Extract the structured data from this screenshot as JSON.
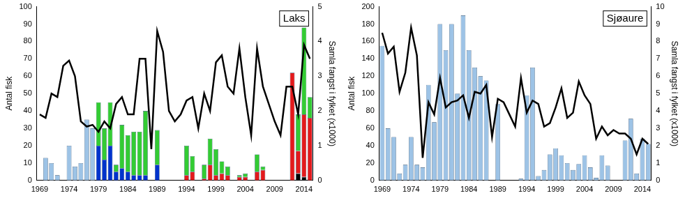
{
  "chart_data": [
    {
      "type": "bar",
      "title": "Laks",
      "ylabel": "Antal fisk",
      "y2label": "Samla fangst i fylket (x1000)",
      "stacked": true,
      "grid": false,
      "categories": [
        "1969",
        null,
        null,
        null,
        null,
        "1974",
        null,
        null,
        null,
        null,
        "1979",
        null,
        null,
        null,
        null,
        "1984",
        null,
        null,
        null,
        null,
        "1989",
        null,
        null,
        null,
        null,
        "1994",
        null,
        null,
        null,
        null,
        "1999",
        null,
        null,
        null,
        null,
        "2004",
        null,
        null,
        null,
        null,
        "2009",
        null,
        null,
        null,
        null,
        "2014",
        null
      ],
      "ylim": [
        0,
        100
      ],
      "yticks": [
        0,
        10,
        20,
        30,
        40,
        50,
        60,
        70,
        80,
        90,
        100
      ],
      "y2lim": [
        0,
        5
      ],
      "y2ticks": [
        0,
        1,
        2,
        3,
        4,
        5
      ],
      "series": [
        {
          "type": "bar",
          "color": "#9dc3e6",
          "values": [
            null,
            13,
            10,
            3,
            null,
            20,
            8,
            10,
            35,
            30,
            null,
            null,
            null,
            null,
            null,
            null,
            null,
            null,
            null,
            null,
            null,
            null,
            null,
            null,
            null,
            null,
            null,
            null,
            null,
            null,
            null,
            null,
            null,
            null,
            null,
            null,
            null,
            null,
            null,
            null,
            null,
            null,
            null,
            null,
            null,
            null,
            null
          ]
        },
        {
          "type": "bar",
          "color": "#0033cc",
          "values": [
            null,
            null,
            null,
            null,
            null,
            null,
            null,
            null,
            null,
            null,
            20,
            12,
            20,
            5,
            7,
            5,
            3,
            3,
            3,
            null,
            9,
            null,
            null,
            null,
            null,
            null,
            null,
            null,
            null,
            null,
            null,
            null,
            null,
            null,
            null,
            null,
            null,
            null,
            null,
            null,
            null,
            null,
            null,
            null,
            null,
            null,
            null
          ]
        },
        {
          "type": "bar",
          "color": "#000000",
          "values": [
            null,
            null,
            null,
            null,
            null,
            null,
            null,
            null,
            null,
            null,
            null,
            null,
            null,
            null,
            null,
            null,
            null,
            null,
            null,
            null,
            null,
            null,
            null,
            null,
            null,
            null,
            null,
            null,
            null,
            null,
            null,
            null,
            null,
            null,
            null,
            null,
            null,
            null,
            null,
            null,
            null,
            null,
            null,
            null,
            4,
            2,
            null
          ]
        },
        {
          "type": "bar",
          "color": "#e31a1c",
          "values": [
            null,
            null,
            null,
            null,
            null,
            null,
            null,
            null,
            null,
            null,
            null,
            null,
            null,
            null,
            null,
            null,
            null,
            null,
            null,
            null,
            null,
            null,
            null,
            null,
            null,
            3,
            5,
            null,
            1,
            9,
            3,
            4,
            3,
            null,
            2,
            2,
            null,
            5,
            6,
            null,
            null,
            null,
            null,
            62,
            13,
            36,
            36
          ]
        },
        {
          "type": "bar",
          "color": "#33cc33",
          "values": [
            null,
            null,
            null,
            null,
            null,
            null,
            null,
            null,
            null,
            null,
            25,
            18,
            25,
            4,
            25,
            21,
            25,
            25,
            37,
            null,
            20,
            null,
            null,
            null,
            null,
            17,
            9,
            null,
            8,
            15,
            15,
            7,
            5,
            null,
            1,
            2,
            null,
            10,
            2,
            null,
            null,
            null,
            null,
            null,
            21,
            50,
            12
          ]
        },
        {
          "type": "line",
          "axis": "y2",
          "color": "#000000",
          "marker": "none",
          "line_style": "solid",
          "values": [
            1.9,
            1.8,
            2.5,
            2.4,
            3.3,
            3.45,
            3.0,
            1.7,
            1.55,
            1.6,
            1.4,
            1.7,
            1.5,
            2.2,
            2.4,
            1.9,
            1.9,
            3.5,
            3.5,
            0.9,
            4.3,
            3.7,
            2.0,
            1.7,
            1.9,
            2.3,
            2.4,
            1.5,
            2.5,
            2.0,
            3.4,
            3.6,
            2.7,
            2.5,
            3.8,
            2.4,
            1.3,
            3.8,
            2.7,
            2.2,
            1.7,
            1.3,
            2.7,
            2.7,
            1.9,
            3.9,
            3.5
          ]
        }
      ]
    },
    {
      "type": "bar",
      "title": "Sjøaure",
      "ylabel": "Antal fisk",
      "y2label": "Samla fangst i fylket (x1000)",
      "stacked": true,
      "grid": false,
      "categories": [
        "1969",
        null,
        null,
        null,
        null,
        "1974",
        null,
        null,
        null,
        null,
        "1979",
        null,
        null,
        null,
        null,
        "1984",
        null,
        null,
        null,
        null,
        "1989",
        null,
        null,
        null,
        null,
        "1994",
        null,
        null,
        null,
        null,
        "1999",
        null,
        null,
        null,
        null,
        "2004",
        null,
        null,
        null,
        null,
        "2009",
        null,
        null,
        null,
        null,
        "2014",
        null
      ],
      "ylim": [
        0,
        200
      ],
      "yticks": [
        0,
        20,
        40,
        60,
        80,
        100,
        120,
        140,
        160,
        180,
        200
      ],
      "y2lim": [
        0,
        10
      ],
      "y2ticks": [
        0,
        1,
        2,
        3,
        4,
        5,
        6,
        7,
        8,
        9,
        10
      ],
      "series": [
        {
          "type": "bar",
          "color": "#9dc3e6",
          "values": [
            155,
            60,
            50,
            8,
            18,
            50,
            18,
            15,
            110,
            67,
            180,
            150,
            180,
            100,
            190,
            150,
            130,
            120,
            115,
            null,
            88,
            null,
            null,
            null,
            2,
            98,
            130,
            5,
            12,
            30,
            37,
            29,
            20,
            12,
            19,
            29,
            15,
            3,
            29,
            17,
            null,
            null,
            46,
            71,
            8,
            48,
            42
          ]
        },
        {
          "type": "line",
          "axis": "y2",
          "color": "#000000",
          "marker": "none",
          "line_style": "solid",
          "values": [
            8.5,
            7.3,
            7.7,
            5.1,
            6.2,
            8.8,
            7.2,
            1.3,
            4.5,
            3.8,
            5.9,
            4.2,
            4.5,
            4.6,
            4.9,
            3.6,
            5.1,
            5.0,
            5.5,
            2.5,
            4.7,
            4.5,
            3.8,
            3.1,
            5.9,
            3.9,
            4.6,
            4.4,
            3.1,
            3.3,
            4.2,
            5.3,
            3.6,
            3.9,
            5.7,
            4.9,
            4.4,
            2.4,
            3.1,
            2.6,
            2.9,
            2.7,
            2.7,
            2.4,
            1.5,
            2.4,
            2.1
          ]
        }
      ]
    }
  ]
}
